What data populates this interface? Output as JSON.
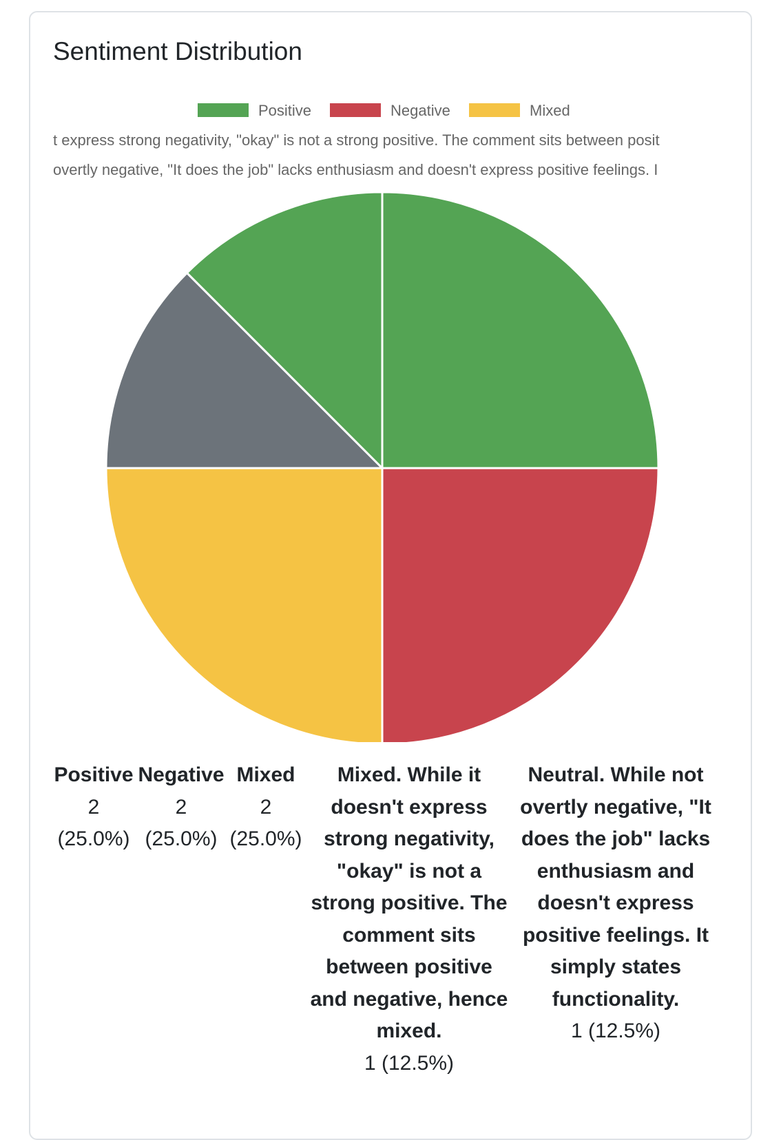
{
  "card": {
    "title": "Sentiment Distribution"
  },
  "chart_data": {
    "type": "pie",
    "title": "",
    "legend": {
      "position": "top",
      "entries": [
        {
          "name": "Positive",
          "color": "#54a454"
        },
        {
          "name": "Negative",
          "color": "#c8444d"
        },
        {
          "name": "Mixed",
          "color": "#f5c344"
        }
      ]
    },
    "legend_overflow_lines": [
      "Mixed. While it doesn't express strong negativity, \"okay\" is not a strong positive.  The comment sits between positive and negative, hence mixed.",
      "Neutral. While not overtly negative, \"It does the job\" lacks enthusiasm and doesn't express positive feelings.  It simply states functionality."
    ],
    "legend_overflow_visible": [
      "t express strong negativity, \"okay\" is not a strong positive.  The comment sits between posit",
      "overtly negative, \"It does the job\" lacks enthusiasm and doesn't express positive feelings.  I"
    ],
    "slices": [
      {
        "label": "Positive",
        "value": 2,
        "color": "#54a454"
      },
      {
        "label": "Negative",
        "value": 2,
        "color": "#c8444d"
      },
      {
        "label": "Mixed",
        "value": 2,
        "color": "#f5c344"
      },
      {
        "label": "Mixed. While it doesn't express strong negativity, \"okay\" is not a strong positive.  The comment sits between positive and negative, hence mixed.",
        "value": 1,
        "color": "#6c737a"
      },
      {
        "label": "Neutral. While not overtly negative, \"It does the job\" lacks enthusiasm and doesn't express positive feelings.  It simply states functionality.",
        "value": 1,
        "color": "#54a454"
      }
    ]
  },
  "stats": [
    {
      "label": "Positive",
      "value": "2 (25.0%)"
    },
    {
      "label": "Negative",
      "value": "2 (25.0%)"
    },
    {
      "label": "Mixed",
      "value": "2 (25.0%)"
    },
    {
      "label": "Mixed. While it doesn't express strong negativity, \"okay\" is not a strong positive. The comment sits between positive and negative, hence mixed.",
      "value": "1 (12.5%)"
    },
    {
      "label": "Neutral. While not overtly negative, \"It does the job\" lacks enthusiasm and doesn't express positive feelings. It simply states functionality.",
      "value": "1 (12.5%)"
    }
  ]
}
